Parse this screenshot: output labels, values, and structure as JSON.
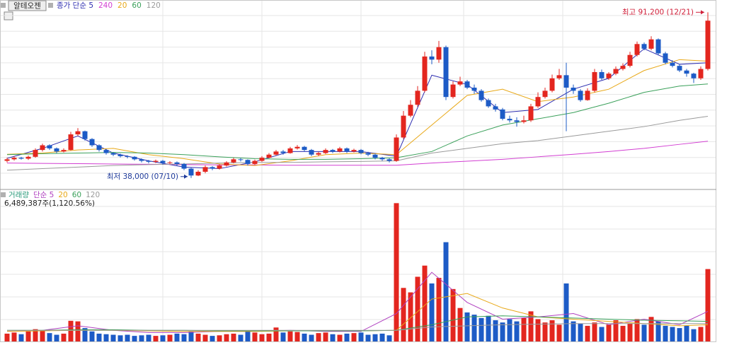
{
  "chart_data": [
    {
      "type": "candlestick",
      "title": "알테오젠",
      "open": [
        43500,
        44000,
        44500,
        44200,
        44800,
        47000,
        48500,
        47500,
        46500,
        47000,
        52000,
        53000,
        50500,
        48500,
        47000,
        46000,
        45500,
        45000,
        44800,
        44000,
        43500,
        43200,
        43500,
        42800,
        43000,
        42500,
        41000,
        38800,
        40000,
        41500,
        41000,
        42000,
        43000,
        44000,
        43800,
        42500,
        43500,
        44500,
        45500,
        46500,
        46000,
        47500,
        48000,
        47000,
        45500,
        46000,
        47000,
        46500,
        47500,
        46500,
        47000,
        46000,
        45500,
        44500,
        44000,
        43500,
        51000,
        58000,
        61500,
        66000,
        77000,
        76000,
        80000,
        64000,
        68000,
        69000,
        67000,
        66000,
        63000,
        61000,
        60000,
        57000,
        56500,
        56000,
        56500,
        61000,
        64000,
        66000,
        70000,
        71000,
        67000,
        66000,
        63000,
        66000,
        72000,
        70000,
        71500,
        73000,
        74000,
        77500,
        81000,
        79500,
        82500,
        78000,
        75000,
        74000,
        72500,
        71500,
        70000,
        73000
      ],
      "high": [
        44500,
        45000,
        44800,
        45200,
        47500,
        49000,
        48800,
        47800,
        47500,
        52800,
        54000,
        53200,
        50800,
        48800,
        47300,
        46300,
        45800,
        45300,
        45000,
        44300,
        43800,
        43900,
        43800,
        43400,
        43300,
        42800,
        41300,
        40500,
        42000,
        41800,
        42400,
        43400,
        44500,
        44400,
        44000,
        43900,
        45000,
        46000,
        47000,
        47000,
        48000,
        48600,
        48300,
        47300,
        46400,
        47500,
        47300,
        48000,
        47800,
        47400,
        47300,
        46400,
        45800,
        44800,
        44300,
        52000,
        59500,
        63000,
        67500,
        78500,
        79000,
        82000,
        80500,
        69000,
        70500,
        69500,
        68000,
        66500,
        63500,
        61800,
        60500,
        58000,
        57500,
        58000,
        61800,
        65500,
        67000,
        71200,
        73000,
        75000,
        68000,
        66500,
        66800,
        73000,
        72800,
        72000,
        73800,
        74800,
        78500,
        81800,
        81500,
        83500,
        82800,
        78500,
        75800,
        74600,
        73000,
        71800,
        73800,
        91200
      ],
      "low": [
        43000,
        43600,
        43900,
        43800,
        44500,
        46500,
        47000,
        46000,
        46200,
        46800,
        51500,
        50000,
        48000,
        46500,
        45500,
        45000,
        44600,
        44300,
        43600,
        43000,
        42700,
        42800,
        42300,
        42500,
        42000,
        40500,
        38000,
        38600,
        39500,
        40500,
        40700,
        41700,
        42700,
        43300,
        42000,
        42200,
        43200,
        44300,
        45200,
        45500,
        45800,
        47100,
        46500,
        45000,
        45000,
        45700,
        46000,
        46200,
        46000,
        46200,
        45600,
        45000,
        44000,
        43500,
        43000,
        43200,
        50500,
        57500,
        60800,
        65500,
        74500,
        75000,
        63000,
        63500,
        67500,
        66500,
        65000,
        62500,
        60500,
        59300,
        56500,
        55800,
        54500,
        55500,
        56000,
        60500,
        63500,
        65500,
        69500,
        53000,
        65000,
        62500,
        62800,
        65500,
        69500,
        69500,
        71000,
        72500,
        73500,
        77000,
        79000,
        79000,
        77500,
        74500,
        73500,
        72000,
        70500,
        68500,
        69500,
        72500
      ],
      "close": [
        44000,
        44500,
        44200,
        44800,
        47000,
        48500,
        47500,
        46500,
        47000,
        52000,
        53000,
        50500,
        48500,
        47000,
        46000,
        45500,
        45000,
        44800,
        44000,
        43500,
        43200,
        43500,
        42800,
        43000,
        42500,
        41000,
        38800,
        40000,
        41500,
        41000,
        42000,
        43000,
        44000,
        43800,
        42500,
        43500,
        44500,
        45500,
        46500,
        46000,
        47500,
        48000,
        47000,
        45500,
        46000,
        47000,
        46500,
        47500,
        46500,
        47000,
        46000,
        45500,
        44500,
        44000,
        43500,
        51000,
        58000,
        61500,
        66000,
        77000,
        76000,
        80000,
        64000,
        68000,
        69000,
        67000,
        66000,
        63000,
        61000,
        60000,
        57000,
        56500,
        56000,
        56500,
        61000,
        64000,
        66000,
        70000,
        71000,
        67000,
        66000,
        63000,
        66000,
        72000,
        70000,
        71500,
        73000,
        74000,
        77500,
        81000,
        79500,
        82500,
        78000,
        75000,
        74000,
        72500,
        71500,
        70000,
        73000,
        88500
      ],
      "up_color": "#e3261f",
      "down_color": "#1d5bc6",
      "ylim": [
        35000,
        94000
      ],
      "grid": true,
      "series": [
        {
          "name": "종가 단순 5",
          "color": "#2e2eb0",
          "x": [
            0,
            5,
            10,
            15,
            20,
            25,
            30,
            35,
            40,
            45,
            50,
            55,
            60,
            65,
            70,
            75,
            80,
            85,
            90,
            95,
            99
          ],
          "values": [
            44300,
            47500,
            51500,
            46000,
            43500,
            41500,
            41000,
            43200,
            46500,
            46500,
            46500,
            45000,
            71000,
            68000,
            59000,
            60000,
            66500,
            70000,
            79500,
            74500,
            75000
          ]
        },
        {
          "name": "240",
          "color": "#d23ed2",
          "x": [
            0,
            5,
            10,
            15,
            20,
            25,
            30,
            35,
            40,
            45,
            50,
            55,
            60,
            65,
            70,
            75,
            80,
            85,
            90,
            95,
            99
          ],
          "values": [
            42800,
            42700,
            42600,
            42500,
            42400,
            42300,
            42200,
            42200,
            42100,
            42100,
            42100,
            42100,
            42800,
            43400,
            44000,
            44800,
            45600,
            46500,
            47500,
            48800,
            49800
          ]
        },
        {
          "name": "20",
          "color": "#e8a817",
          "x": [
            0,
            5,
            10,
            15,
            20,
            25,
            30,
            35,
            40,
            45,
            50,
            55,
            60,
            65,
            70,
            75,
            80,
            85,
            90,
            95,
            99
          ],
          "values": [
            45600,
            46000,
            47000,
            47500,
            45500,
            44200,
            42500,
            42000,
            43500,
            45500,
            46000,
            45500,
            55000,
            64500,
            66500,
            62500,
            64000,
            66500,
            72500,
            76000,
            75500
          ]
        },
        {
          "name": "60",
          "color": "#3aa05a",
          "x": [
            0,
            5,
            10,
            15,
            20,
            25,
            30,
            35,
            40,
            45,
            50,
            55,
            60,
            65,
            70,
            75,
            80,
            85,
            90,
            95,
            99
          ],
          "values": [
            45500,
            45800,
            46000,
            46200,
            46000,
            45500,
            44800,
            44200,
            44000,
            44000,
            44200,
            44500,
            46500,
            51500,
            55000,
            57000,
            59000,
            62000,
            65500,
            67500,
            68200
          ]
        },
        {
          "name": "120",
          "color": "#9a9a9a",
          "x": [
            0,
            5,
            10,
            15,
            20,
            25,
            30,
            35,
            40,
            45,
            50,
            55,
            60,
            65,
            70,
            75,
            80,
            85,
            90,
            95,
            99
          ],
          "values": [
            40500,
            41000,
            41500,
            42000,
            42300,
            42500,
            42800,
            43000,
            43000,
            43200,
            43300,
            43500,
            46000,
            47500,
            49000,
            50000,
            51500,
            53000,
            54500,
            56500,
            57800
          ]
        }
      ],
      "annotations": [
        {
          "text": "최고 91,200 (12/21)",
          "color": "#d0203a"
        },
        {
          "text": "최저 38,000 (07/10)",
          "color": "#1e3a9a"
        }
      ]
    },
    {
      "type": "bar",
      "title": "거래량",
      "title_color": "#2a9a7a",
      "values": [
        700000,
        800000,
        650000,
        900000,
        1100000,
        1000000,
        750000,
        600000,
        700000,
        1850000,
        1800000,
        1200000,
        900000,
        700000,
        650000,
        600000,
        550000,
        600000,
        500000,
        550000,
        600000,
        500000,
        550000,
        600000,
        700000,
        650000,
        900000,
        700000,
        600000,
        500000,
        550000,
        650000,
        700000,
        600000,
        900000,
        800000,
        650000,
        700000,
        1250000,
        800000,
        900000,
        850000,
        700000,
        600000,
        750000,
        800000,
        650000,
        600000,
        700000,
        750000,
        800000,
        600000,
        650000,
        700000,
        550000,
        12400000,
        4800000,
        4400000,
        5800000,
        6800000,
        5200000,
        5700000,
        8900000,
        4700000,
        3000000,
        2600000,
        2400000,
        2100000,
        2300000,
        1900000,
        1700000,
        2000000,
        1800000,
        2100000,
        2700000,
        2000000,
        1700000,
        1900000,
        1500000,
        5200000,
        1800000,
        1600000,
        1400000,
        1700000,
        1300000,
        1500000,
        1900000,
        1400000,
        1600000,
        2000000,
        1500000,
        2200000,
        1800000,
        1400000,
        1300000,
        1200000,
        1400000,
        1100000,
        1300000,
        6489387
      ],
      "ylim": [
        0,
        13500000
      ],
      "info": "6,489,387주(1,120.56%)",
      "series": [
        {
          "name": "단순 5",
          "color": "#b040c0",
          "x": [
            0,
            5,
            10,
            15,
            20,
            25,
            30,
            35,
            40,
            45,
            50,
            55,
            60,
            65,
            70,
            75,
            80,
            85,
            90,
            95,
            99
          ],
          "values": [
            900000,
            1000000,
            1400000,
            1000000,
            800000,
            800000,
            900000,
            900000,
            1000000,
            900000,
            900000,
            2500000,
            6200000,
            3500000,
            2000000,
            2200000,
            2500000,
            1500000,
            2000000,
            1500000,
            2700000
          ]
        },
        {
          "name": "20",
          "color": "#e8a817",
          "x": [
            0,
            5,
            10,
            15,
            20,
            25,
            30,
            35,
            40,
            45,
            50,
            55,
            60,
            65,
            70,
            75,
            80,
            85,
            90,
            95,
            99
          ],
          "values": [
            900000,
            950000,
            1000000,
            1000000,
            950000,
            900000,
            900000,
            900000,
            950000,
            950000,
            950000,
            1000000,
            3800000,
            4300000,
            3000000,
            2200000,
            2000000,
            1800000,
            1600000,
            1400000,
            1500000
          ]
        },
        {
          "name": "60",
          "color": "#3aa05a",
          "x": [
            0,
            5,
            10,
            15,
            20,
            25,
            30,
            35,
            40,
            45,
            50,
            55,
            60,
            65,
            70,
            75,
            80,
            85,
            90,
            95,
            99
          ],
          "values": [
            1000000,
            1000000,
            1050000,
            1050000,
            1000000,
            1000000,
            950000,
            950000,
            950000,
            950000,
            950000,
            1000000,
            1500000,
            2200000,
            2300000,
            2200000,
            2100000,
            2000000,
            1900000,
            1850000,
            1800000
          ]
        },
        {
          "name": "120",
          "color": "#9a9a9a",
          "x": [
            0,
            5,
            10,
            15,
            20,
            25,
            30,
            35,
            40,
            45,
            50,
            55,
            60,
            65,
            70,
            75,
            80,
            85,
            90,
            95,
            99
          ],
          "values": [
            1000000,
            1000000,
            1000000,
            1000000,
            1000000,
            1000000,
            1000000,
            1000000,
            1000000,
            1000000,
            1000000,
            1000000,
            1300000,
            1400000,
            1500000,
            1550000,
            1600000,
            1600000,
            1600000,
            1600000,
            1600000
          ]
        }
      ]
    }
  ]
}
